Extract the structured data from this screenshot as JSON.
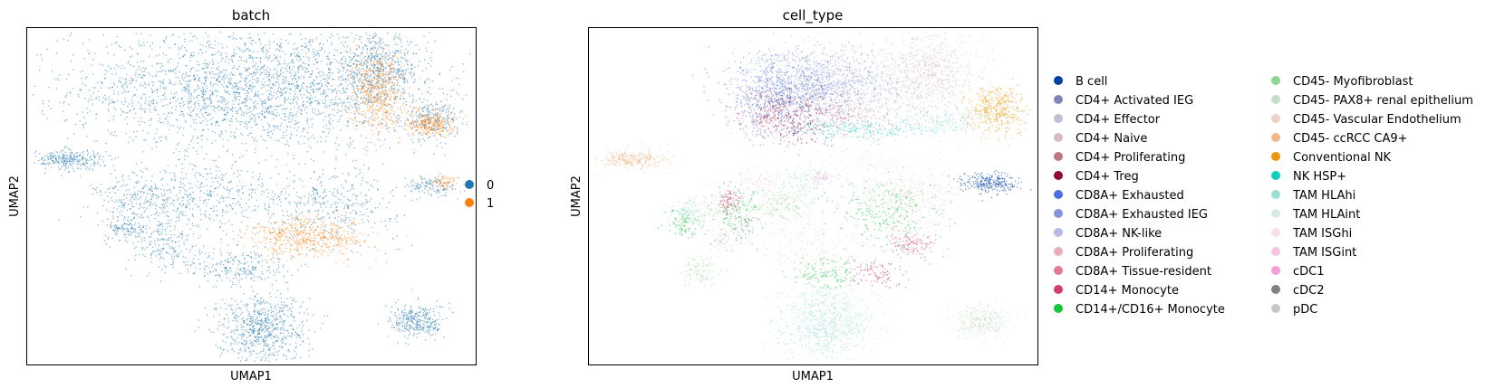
{
  "chart_data": [
    {
      "type": "scatter",
      "title": "batch",
      "xlabel": "UMAP1",
      "ylabel": "UMAP2",
      "grid": false,
      "ticks": false,
      "legend_placement": "right",
      "categories": [
        {
          "name": "0",
          "color": "#1f77b4"
        },
        {
          "name": "1",
          "color": "#ff7f0e"
        }
      ],
      "regions": [
        {
          "category": "0",
          "x": 0.5,
          "y": 0.82,
          "sx": 0.2,
          "sy": 0.09,
          "n": 2600
        },
        {
          "category": "0",
          "x": 0.78,
          "y": 0.88,
          "sx": 0.05,
          "sy": 0.05,
          "n": 500
        },
        {
          "category": "0",
          "x": 0.9,
          "y": 0.73,
          "sx": 0.03,
          "sy": 0.03,
          "n": 220
        },
        {
          "category": "0",
          "x": 0.09,
          "y": 0.61,
          "sx": 0.04,
          "sy": 0.015,
          "n": 280
        },
        {
          "category": "0",
          "x": 0.25,
          "y": 0.49,
          "sx": 0.05,
          "sy": 0.04,
          "n": 240
        },
        {
          "category": "0",
          "x": 0.4,
          "y": 0.5,
          "sx": 0.08,
          "sy": 0.05,
          "n": 380
        },
        {
          "category": "0",
          "x": 0.67,
          "y": 0.48,
          "sx": 0.08,
          "sy": 0.05,
          "n": 380
        },
        {
          "category": "0",
          "x": 0.3,
          "y": 0.36,
          "sx": 0.04,
          "sy": 0.04,
          "n": 200
        },
        {
          "category": "0",
          "x": 0.22,
          "y": 0.41,
          "sx": 0.02,
          "sy": 0.02,
          "n": 100
        },
        {
          "category": "0",
          "x": 0.47,
          "y": 0.29,
          "sx": 0.06,
          "sy": 0.03,
          "n": 250
        },
        {
          "category": "0",
          "x": 0.52,
          "y": 0.11,
          "sx": 0.05,
          "sy": 0.05,
          "n": 700
        },
        {
          "category": "0",
          "x": 0.87,
          "y": 0.13,
          "sx": 0.03,
          "sy": 0.025,
          "n": 320
        },
        {
          "category": "0",
          "x": 0.9,
          "y": 0.53,
          "sx": 0.03,
          "sy": 0.015,
          "n": 120
        },
        {
          "category": "1",
          "x": 0.78,
          "y": 0.81,
          "sx": 0.03,
          "sy": 0.06,
          "n": 550
        },
        {
          "category": "1",
          "x": 0.9,
          "y": 0.72,
          "sx": 0.025,
          "sy": 0.02,
          "n": 280
        },
        {
          "category": "1",
          "x": 0.63,
          "y": 0.38,
          "sx": 0.07,
          "sy": 0.03,
          "n": 550
        },
        {
          "category": "1",
          "x": 0.93,
          "y": 0.54,
          "sx": 0.015,
          "sy": 0.012,
          "n": 60
        }
      ]
    },
    {
      "type": "scatter",
      "title": "cell_type",
      "xlabel": "UMAP1",
      "ylabel": "UMAP2",
      "grid": false,
      "ticks": false,
      "legend_placement": "right",
      "categories": [
        {
          "name": "B cell",
          "color": "#023fa5"
        },
        {
          "name": "CD4+ Activated IEG",
          "color": "#7d87b9"
        },
        {
          "name": "CD4+ Effector",
          "color": "#bec1d4"
        },
        {
          "name": "CD4+ Naive",
          "color": "#d6bcc0"
        },
        {
          "name": "CD4+ Proliferating",
          "color": "#bb7784"
        },
        {
          "name": "CD4+ Treg",
          "color": "#8e063b"
        },
        {
          "name": "CD8A+ Exhausted",
          "color": "#4a6fe3"
        },
        {
          "name": "CD8A+ Exhausted IEG",
          "color": "#8595e1"
        },
        {
          "name": "CD8A+ NK-like",
          "color": "#b5bbe3"
        },
        {
          "name": "CD8A+ Proliferating",
          "color": "#e6afb9"
        },
        {
          "name": "CD8A+ Tissue-resident",
          "color": "#e07b91"
        },
        {
          "name": "CD14+ Monocyte",
          "color": "#d33f6a"
        },
        {
          "name": "CD14+/CD16+ Monocyte",
          "color": "#11c638"
        },
        {
          "name": "CD45- Myofibroblast",
          "color": "#8dd593"
        },
        {
          "name": "CD45- PAX8+ renal epithelium",
          "color": "#c6dec7"
        },
        {
          "name": "CD45- Vascular Endothelium",
          "color": "#ead3c6"
        },
        {
          "name": "CD45- ccRCC CA9+",
          "color": "#f0b98d"
        },
        {
          "name": "Conventional NK",
          "color": "#ef9708"
        },
        {
          "name": "NK HSP+",
          "color": "#0fcfc0"
        },
        {
          "name": "TAM HLAhi",
          "color": "#9cded6"
        },
        {
          "name": "TAM HLAint",
          "color": "#d5eae7"
        },
        {
          "name": "TAM ISGhi",
          "color": "#f3e1eb"
        },
        {
          "name": "TAM ISGint",
          "color": "#f6c4e1"
        },
        {
          "name": "cDC1",
          "color": "#f79cd4"
        },
        {
          "name": "cDC2",
          "color": "#7f7f7f"
        },
        {
          "name": "pDC",
          "color": "#c7c7c7"
        }
      ],
      "regions": [
        {
          "category": "CD8A+ Exhausted",
          "x": 0.42,
          "y": 0.8,
          "sx": 0.06,
          "sy": 0.06,
          "n": 650
        },
        {
          "category": "CD8A+ Exhausted IEG",
          "x": 0.48,
          "y": 0.84,
          "sx": 0.07,
          "sy": 0.05,
          "n": 450
        },
        {
          "category": "CD4+ Activated IEG",
          "x": 0.55,
          "y": 0.82,
          "sx": 0.07,
          "sy": 0.06,
          "n": 300
        },
        {
          "category": "CD4+ Effector",
          "x": 0.55,
          "y": 0.8,
          "sx": 0.08,
          "sy": 0.07,
          "n": 400
        },
        {
          "category": "CD8A+ NK-like",
          "x": 0.62,
          "y": 0.84,
          "sx": 0.07,
          "sy": 0.05,
          "n": 350
        },
        {
          "category": "CD4+ Naive",
          "x": 0.76,
          "y": 0.87,
          "sx": 0.05,
          "sy": 0.06,
          "n": 650
        },
        {
          "category": "CD4+ Treg",
          "x": 0.45,
          "y": 0.74,
          "sx": 0.05,
          "sy": 0.04,
          "n": 220
        },
        {
          "category": "CD4+ Proliferating",
          "x": 0.4,
          "y": 0.76,
          "sx": 0.03,
          "sy": 0.03,
          "n": 140
        },
        {
          "category": "CD8A+ Proliferating",
          "x": 0.41,
          "y": 0.72,
          "sx": 0.03,
          "sy": 0.03,
          "n": 120
        },
        {
          "category": "CD8A+ Tissue-resident",
          "x": 0.58,
          "y": 0.74,
          "sx": 0.06,
          "sy": 0.03,
          "n": 150
        },
        {
          "category": "NK HSP+",
          "x": 0.6,
          "y": 0.7,
          "sx": 0.09,
          "sy": 0.015,
          "n": 180
        },
        {
          "category": "TAM HLAhi",
          "x": 0.79,
          "y": 0.73,
          "sx": 0.06,
          "sy": 0.02,
          "n": 200
        },
        {
          "category": "Conventional NK",
          "x": 0.91,
          "y": 0.76,
          "sx": 0.03,
          "sy": 0.035,
          "n": 380
        },
        {
          "category": "CD45- ccRCC CA9+",
          "x": 0.09,
          "y": 0.61,
          "sx": 0.04,
          "sy": 0.015,
          "n": 300
        },
        {
          "category": "B cell",
          "x": 0.89,
          "y": 0.54,
          "sx": 0.035,
          "sy": 0.015,
          "n": 260
        },
        {
          "category": "CD14+/CD16+ Monocyte",
          "x": 0.67,
          "y": 0.45,
          "sx": 0.06,
          "sy": 0.05,
          "n": 260
        },
        {
          "category": "CD14+/CD16+ Monocyte",
          "x": 0.33,
          "y": 0.45,
          "sx": 0.03,
          "sy": 0.04,
          "n": 140
        },
        {
          "category": "CD14+/CD16+ Monocyte",
          "x": 0.53,
          "y": 0.27,
          "sx": 0.04,
          "sy": 0.03,
          "n": 140
        },
        {
          "category": "CD14+/CD16+ Monocyte",
          "x": 0.21,
          "y": 0.42,
          "sx": 0.02,
          "sy": 0.02,
          "n": 90
        },
        {
          "category": "CD14+ Monocyte",
          "x": 0.31,
          "y": 0.49,
          "sx": 0.015,
          "sy": 0.02,
          "n": 90
        },
        {
          "category": "CD14+ Monocyte",
          "x": 0.72,
          "y": 0.36,
          "sx": 0.03,
          "sy": 0.02,
          "n": 120
        },
        {
          "category": "CD14+ Monocyte",
          "x": 0.64,
          "y": 0.27,
          "sx": 0.03,
          "sy": 0.02,
          "n": 100
        },
        {
          "category": "CD45- Vascular Endothelium",
          "x": 0.72,
          "y": 0.5,
          "sx": 0.06,
          "sy": 0.04,
          "n": 300
        },
        {
          "category": "CD45- Vascular Endothelium",
          "x": 0.5,
          "y": 0.35,
          "sx": 0.07,
          "sy": 0.04,
          "n": 200
        },
        {
          "category": "TAM HLAhi",
          "x": 0.52,
          "y": 0.12,
          "sx": 0.05,
          "sy": 0.05,
          "n": 650
        },
        {
          "category": "TAM HLAhi",
          "x": 0.48,
          "y": 0.55,
          "sx": 0.03,
          "sy": 0.02,
          "n": 100
        },
        {
          "category": "TAM HLAhi",
          "x": 0.22,
          "y": 0.46,
          "sx": 0.02,
          "sy": 0.015,
          "n": 90
        },
        {
          "category": "TAM HLAint",
          "x": 0.56,
          "y": 0.15,
          "sx": 0.05,
          "sy": 0.05,
          "n": 300
        },
        {
          "category": "TAM HLAint",
          "x": 0.7,
          "y": 0.52,
          "sx": 0.05,
          "sy": 0.03,
          "n": 180
        },
        {
          "category": "TAM ISGhi",
          "x": 0.4,
          "y": 0.46,
          "sx": 0.04,
          "sy": 0.03,
          "n": 110
        },
        {
          "category": "TAM ISGint",
          "x": 0.38,
          "y": 0.55,
          "sx": 0.03,
          "sy": 0.02,
          "n": 80
        },
        {
          "category": "CD45- Myofibroblast",
          "x": 0.44,
          "y": 0.48,
          "sx": 0.04,
          "sy": 0.03,
          "n": 150
        },
        {
          "category": "CD45- Myofibroblast",
          "x": 0.25,
          "y": 0.28,
          "sx": 0.02,
          "sy": 0.02,
          "n": 80
        },
        {
          "category": "CD45- PAX8+ renal epithelium",
          "x": 0.87,
          "y": 0.13,
          "sx": 0.03,
          "sy": 0.025,
          "n": 330
        },
        {
          "category": "cDC1",
          "x": 0.52,
          "y": 0.56,
          "sx": 0.015,
          "sy": 0.01,
          "n": 40
        },
        {
          "category": "cDC2",
          "x": 0.34,
          "y": 0.42,
          "sx": 0.02,
          "sy": 0.02,
          "n": 40
        },
        {
          "category": "pDC",
          "x": 0.3,
          "y": 0.37,
          "sx": 0.02,
          "sy": 0.02,
          "n": 60
        },
        {
          "category": "CD45- Vascular Endothelium",
          "x": 0.27,
          "y": 0.47,
          "sx": 0.03,
          "sy": 0.03,
          "n": 90
        },
        {
          "category": "TAM ISGhi",
          "x": 0.63,
          "y": 0.6,
          "sx": 0.04,
          "sy": 0.015,
          "n": 90
        }
      ]
    }
  ]
}
